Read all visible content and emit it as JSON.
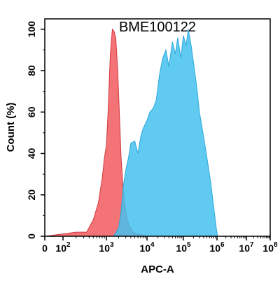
{
  "chart_data": {
    "type": "area",
    "title": "BME100122",
    "xlabel": "APC-A",
    "ylabel": "Count  (%)",
    "x_scale": "biexponential",
    "xlim": [
      0,
      100000000
    ],
    "ylim": [
      0,
      105
    ],
    "x_ticks": [
      {
        "value": 0,
        "base": "0",
        "exp": ""
      },
      {
        "value": 100,
        "base": "10",
        "exp": "2"
      },
      {
        "value": 1000,
        "base": "10",
        "exp": "3"
      },
      {
        "value": 10000,
        "base": "10",
        "exp": "4"
      },
      {
        "value": 100000,
        "base": "10",
        "exp": "5"
      },
      {
        "value": 1000000,
        "base": "10",
        "exp": "6"
      },
      {
        "value": 10000000,
        "base": "10",
        "exp": "7"
      },
      {
        "value": 100000000,
        "base": "10",
        "exp": "8"
      }
    ],
    "y_ticks": [
      0,
      20,
      40,
      60,
      80,
      100
    ],
    "grid": false,
    "legend": "none",
    "series": [
      {
        "color": "#f15a5e",
        "points": [
          [
            0,
            0
          ],
          [
            60,
            1
          ],
          [
            200,
            2
          ],
          [
            350,
            2
          ],
          [
            500,
            8
          ],
          [
            650,
            16
          ],
          [
            800,
            28
          ],
          [
            900,
            38
          ],
          [
            1000,
            44
          ],
          [
            1100,
            60
          ],
          [
            1250,
            88
          ],
          [
            1400,
            100
          ],
          [
            1550,
            99
          ],
          [
            1700,
            96
          ],
          [
            1900,
            80
          ],
          [
            2100,
            58
          ],
          [
            2300,
            38
          ],
          [
            2600,
            22
          ],
          [
            3000,
            12
          ],
          [
            3500,
            6
          ],
          [
            4500,
            2
          ],
          [
            6000,
            1
          ],
          [
            10000,
            0
          ],
          [
            50000,
            0
          ]
        ]
      },
      {
        "color": "#45c1ef",
        "points": [
          [
            1500,
            0
          ],
          [
            2000,
            4
          ],
          [
            2300,
            12
          ],
          [
            2600,
            24
          ],
          [
            3000,
            32
          ],
          [
            3500,
            38
          ],
          [
            4000,
            45
          ],
          [
            5000,
            46
          ],
          [
            6000,
            40
          ],
          [
            7000,
            48
          ],
          [
            8000,
            52
          ],
          [
            10000,
            56
          ],
          [
            12000,
            60
          ],
          [
            15000,
            62
          ],
          [
            18000,
            66
          ],
          [
            22000,
            78
          ],
          [
            27000,
            86
          ],
          [
            33000,
            90
          ],
          [
            40000,
            82
          ],
          [
            50000,
            94
          ],
          [
            60000,
            88
          ],
          [
            70000,
            96
          ],
          [
            85000,
            86
          ],
          [
            100000,
            97
          ],
          [
            120000,
            92
          ],
          [
            140000,
            100
          ],
          [
            170000,
            92
          ],
          [
            200000,
            84
          ],
          [
            250000,
            72
          ],
          [
            300000,
            60
          ],
          [
            400000,
            48
          ],
          [
            500000,
            38
          ],
          [
            650000,
            26
          ],
          [
            800000,
            14
          ],
          [
            950000,
            4
          ],
          [
            1050000,
            0
          ]
        ]
      }
    ]
  }
}
